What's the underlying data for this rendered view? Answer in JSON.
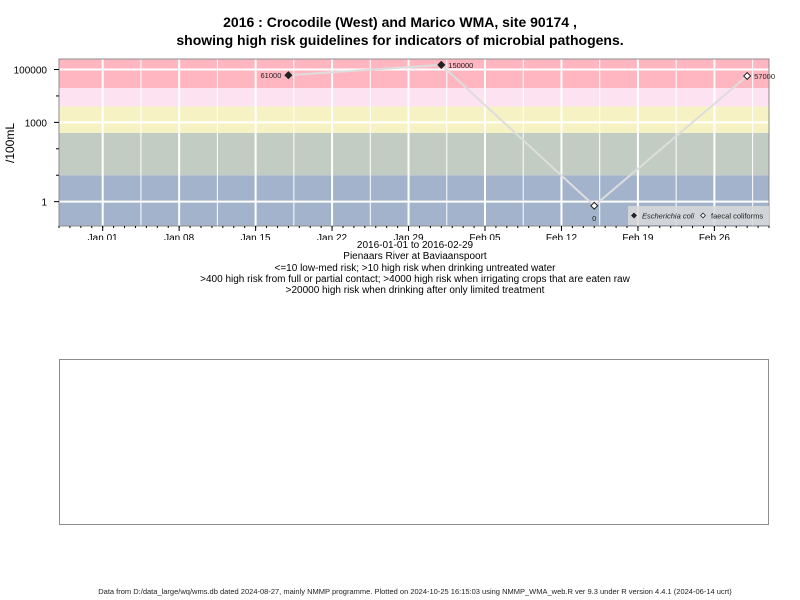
{
  "chart_data": {
    "type": "line",
    "title_line1": "2016 : Crocodile (West) and Marico WMA, site 90174 ,",
    "title_line2": "showing high risk guidelines for indicators of microbial pathogens.",
    "ylabel": "/100mL",
    "yscale": "log",
    "xlim": [
      "2015-12-28",
      "2016-03-02"
    ],
    "x_ticks": [
      {
        "date": "2016-01-01",
        "label": "Jan 01"
      },
      {
        "date": "2016-01-08",
        "label": "Jan 08"
      },
      {
        "date": "2016-01-15",
        "label": "Jan 15"
      },
      {
        "date": "2016-01-22",
        "label": "Jan 22"
      },
      {
        "date": "2016-01-29",
        "label": "Jan 29"
      },
      {
        "date": "2016-02-05",
        "label": "Feb 05"
      },
      {
        "date": "2016-02-12",
        "label": "Feb 12"
      },
      {
        "date": "2016-02-19",
        "label": "Feb 19"
      },
      {
        "date": "2016-02-26",
        "label": "Feb 26"
      }
    ],
    "y_ticks": [
      {
        "value": 1,
        "label": "1"
      },
      {
        "value": 1000,
        "label": "1000"
      },
      {
        "value": 100000,
        "label": "100000"
      }
    ],
    "bands": [
      {
        "from": 0.1,
        "to": 10,
        "color": "#a3b3cc"
      },
      {
        "from": 10,
        "to": 400,
        "color": "#c2ccc2"
      },
      {
        "from": 400,
        "to": 4000,
        "color": "#f7f2c3"
      },
      {
        "from": 4000,
        "to": 20000,
        "color": "#fde3f2"
      },
      {
        "from": 20000,
        "to": 300000,
        "color": "#ffb6c1"
      }
    ],
    "series": [
      {
        "name": "Escherichia coli",
        "marker": "filled-diamond",
        "points": [
          {
            "date": "2016-01-18",
            "value": 61000,
            "label": "61000"
          },
          {
            "date": "2016-02-01",
            "value": 150000,
            "label": "150000"
          }
        ]
      },
      {
        "name": "faecal coliforms",
        "marker": "open-diamond",
        "points": [
          {
            "date": "2016-02-15",
            "value": 0.7,
            "label": "0"
          },
          {
            "date": "2016-02-29",
            "value": 57000,
            "label": "57000"
          }
        ]
      }
    ],
    "line_path": [
      {
        "date": "2016-01-18",
        "value": 61000
      },
      {
        "date": "2016-02-01",
        "value": 150000
      },
      {
        "date": "2016-02-15",
        "value": 0.7
      },
      {
        "date": "2016-02-29",
        "value": 57000
      }
    ],
    "grid": true,
    "legend_position": "bottom-right",
    "colors": {
      "line": "#dddddd",
      "grid": "#ffffff",
      "axis": "#000000",
      "frame": "#8c8c8c"
    }
  },
  "caption": {
    "line1": "2016-01-01 to 2016-02-29",
    "line2": "Pienaars River at Baviaanspoort",
    "line3": "<=10 low-med risk; >10 high risk when drinking untreated water",
    "line4": ">400 high risk from full or partial contact; >4000 high risk when irrigating crops that are eaten raw",
    "line5": ">20000 high risk when drinking after only limited treatment"
  },
  "footer": "Data from D:/data_large/wq/wms.db dated 2024-08-27, mainly NMMP programme. Plotted on 2024-10-25 16:15:03 using NMMP_WMA_web.R ver 9.3 under R version 4.4.1 (2024-06-14 ucrt)"
}
